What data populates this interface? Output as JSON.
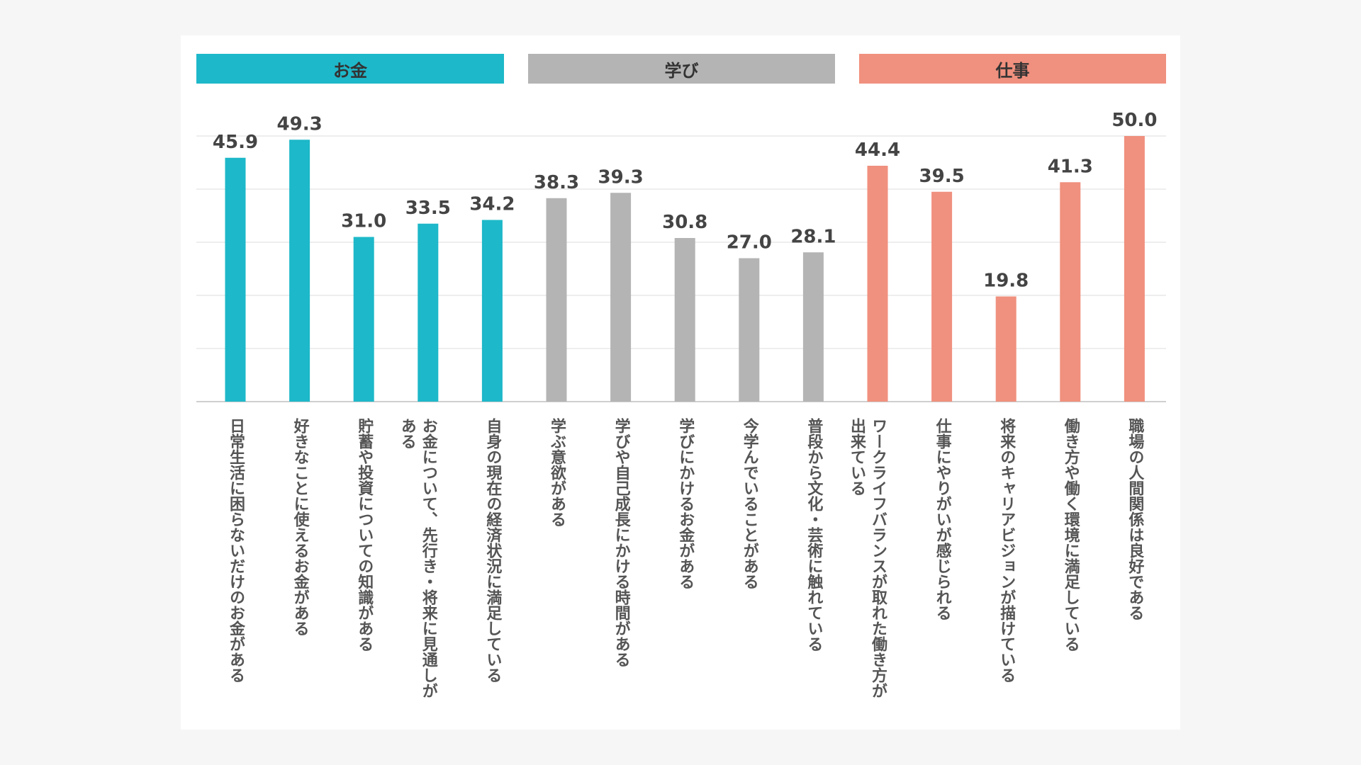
{
  "groups": [
    {
      "label": "お金",
      "color": "#1db8c9"
    },
    {
      "label": "学び",
      "color": "#b4b4b4"
    },
    {
      "label": "仕事",
      "color": "#f0907e"
    }
  ],
  "chart_data": {
    "type": "bar",
    "ylim": [
      0,
      50
    ],
    "grid": true,
    "categories": [
      "日常生活に困らないだけのお金がある",
      "好きなことに使えるお金がある",
      "貯蓄や投資についての知識がある",
      "お金について、先行き・将来に見通しがある",
      "自身の現在の経済状況に満足している",
      "学ぶ意欲がある",
      "学びや自己成長にかける時間がある",
      "学びにかけるお金がある",
      "今学んでいることがある",
      "普段から文化・芸術に触れている",
      "ワークライフバランスが取れた働き方が出来ている",
      "仕事にやりがいが感じられる",
      "将来のキャリアビジョンが描けている",
      "働き方や働く環境に満足している",
      "職場の人間関係は良好である"
    ],
    "values": [
      45.9,
      49.3,
      31.0,
      33.5,
      34.2,
      38.3,
      39.3,
      30.8,
      27.0,
      28.1,
      44.4,
      39.5,
      19.8,
      41.3,
      50.0
    ],
    "value_labels": [
      "45.9",
      "49.3",
      "31.0",
      "33.5",
      "34.2",
      "38.3",
      "39.3",
      "30.8",
      "27.0",
      "28.1",
      "44.4",
      "39.5",
      "19.8",
      "41.3",
      "50.0"
    ],
    "group_index": [
      0,
      0,
      0,
      0,
      0,
      1,
      1,
      1,
      1,
      1,
      2,
      2,
      2,
      2,
      2
    ]
  }
}
